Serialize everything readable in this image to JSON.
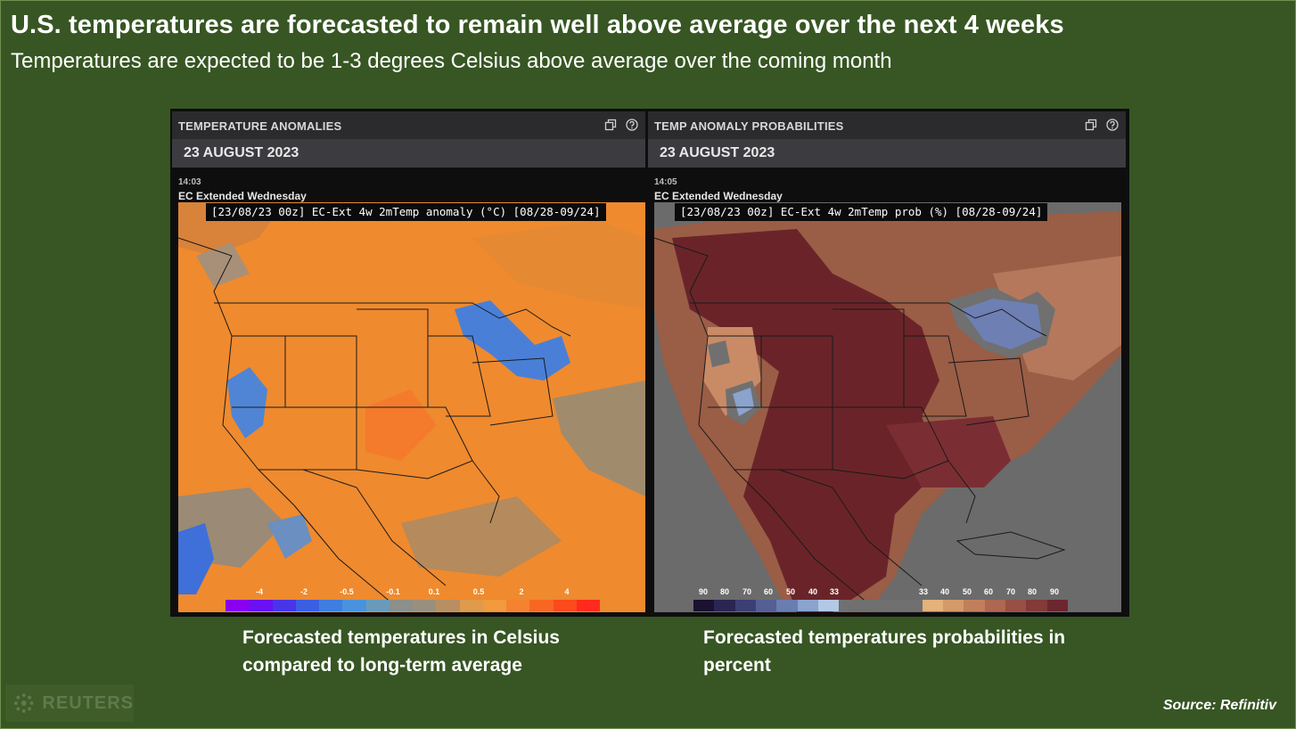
{
  "header": {
    "title": "U.S. temperatures are forecasted to remain well above average over the next 4 weeks",
    "subtitle": "Temperatures are expected to be 1-3 degrees Celsius above average over the coming month"
  },
  "panels": {
    "left": {
      "title": "TEMPERATURE ANOMALIES",
      "date": "23 AUGUST 2023",
      "time": "14:03",
      "model": "EC Extended Wednesday",
      "map_label": "[23/08/23 00z] EC-Ext 4w 2mTemp anomaly (°C) [08/28-09/24]",
      "icons": [
        "popout-icon",
        "help-icon"
      ],
      "scale": {
        "ticks": [
          "-4",
          "-2",
          "-0.5",
          "-0.1",
          "0.1",
          "0.5",
          "2",
          "4"
        ],
        "colors": [
          "#8a00ee",
          "#6a10f2",
          "#4a34e8",
          "#3c5ee0",
          "#3f7ede",
          "#4b92dc",
          "#6a9ab8",
          "#8c8f8a",
          "#9a8f7c",
          "#b98f62",
          "#df9a4c",
          "#f29a3c",
          "#f5822e",
          "#f86722",
          "#fb4a1c",
          "#ff2a1c"
        ]
      },
      "caption": "Forecasted temperatures in Celsius compared to long-term average"
    },
    "right": {
      "title": "TEMP ANOMALY PROBABILITIES",
      "date": "23 AUGUST 2023",
      "time": "14:05",
      "model": "EC Extended Wednesday",
      "map_label": "[23/08/23 00z] EC-Ext 4w 2mTemp prob (%) [08/28-09/24]",
      "icons": [
        "popout-icon",
        "help-icon"
      ],
      "scale": {
        "ticks_cold": [
          "90",
          "80",
          "70",
          "60",
          "50",
          "40",
          "33"
        ],
        "ticks_warm": [
          "33",
          "40",
          "50",
          "60",
          "70",
          "80",
          "90"
        ],
        "colors": [
          "#1a1230",
          "#2a2552",
          "#3c3f74",
          "#555f93",
          "#6a7db0",
          "#8ba3cd",
          "#b3c8e6",
          "#707070",
          "#707070",
          "#707070",
          "#707070",
          "#e4b27a",
          "#d49a6a",
          "#c17f5c",
          "#ae6751",
          "#985044",
          "#833a38",
          "#6c2630"
        ]
      },
      "caption": "Forecasted temperatures probabilities in percent"
    }
  },
  "footer": {
    "logo": "REUTERS",
    "source": "Source: Refinitiv"
  },
  "colors": {
    "background": "#375623",
    "anomaly_base": "#ef8a2e",
    "anomaly_cold": "#4a7fd8",
    "prob_base": "#6a2429",
    "prob_cold": "#6e7fb3",
    "ocean_gray": "#6b6b6b"
  }
}
